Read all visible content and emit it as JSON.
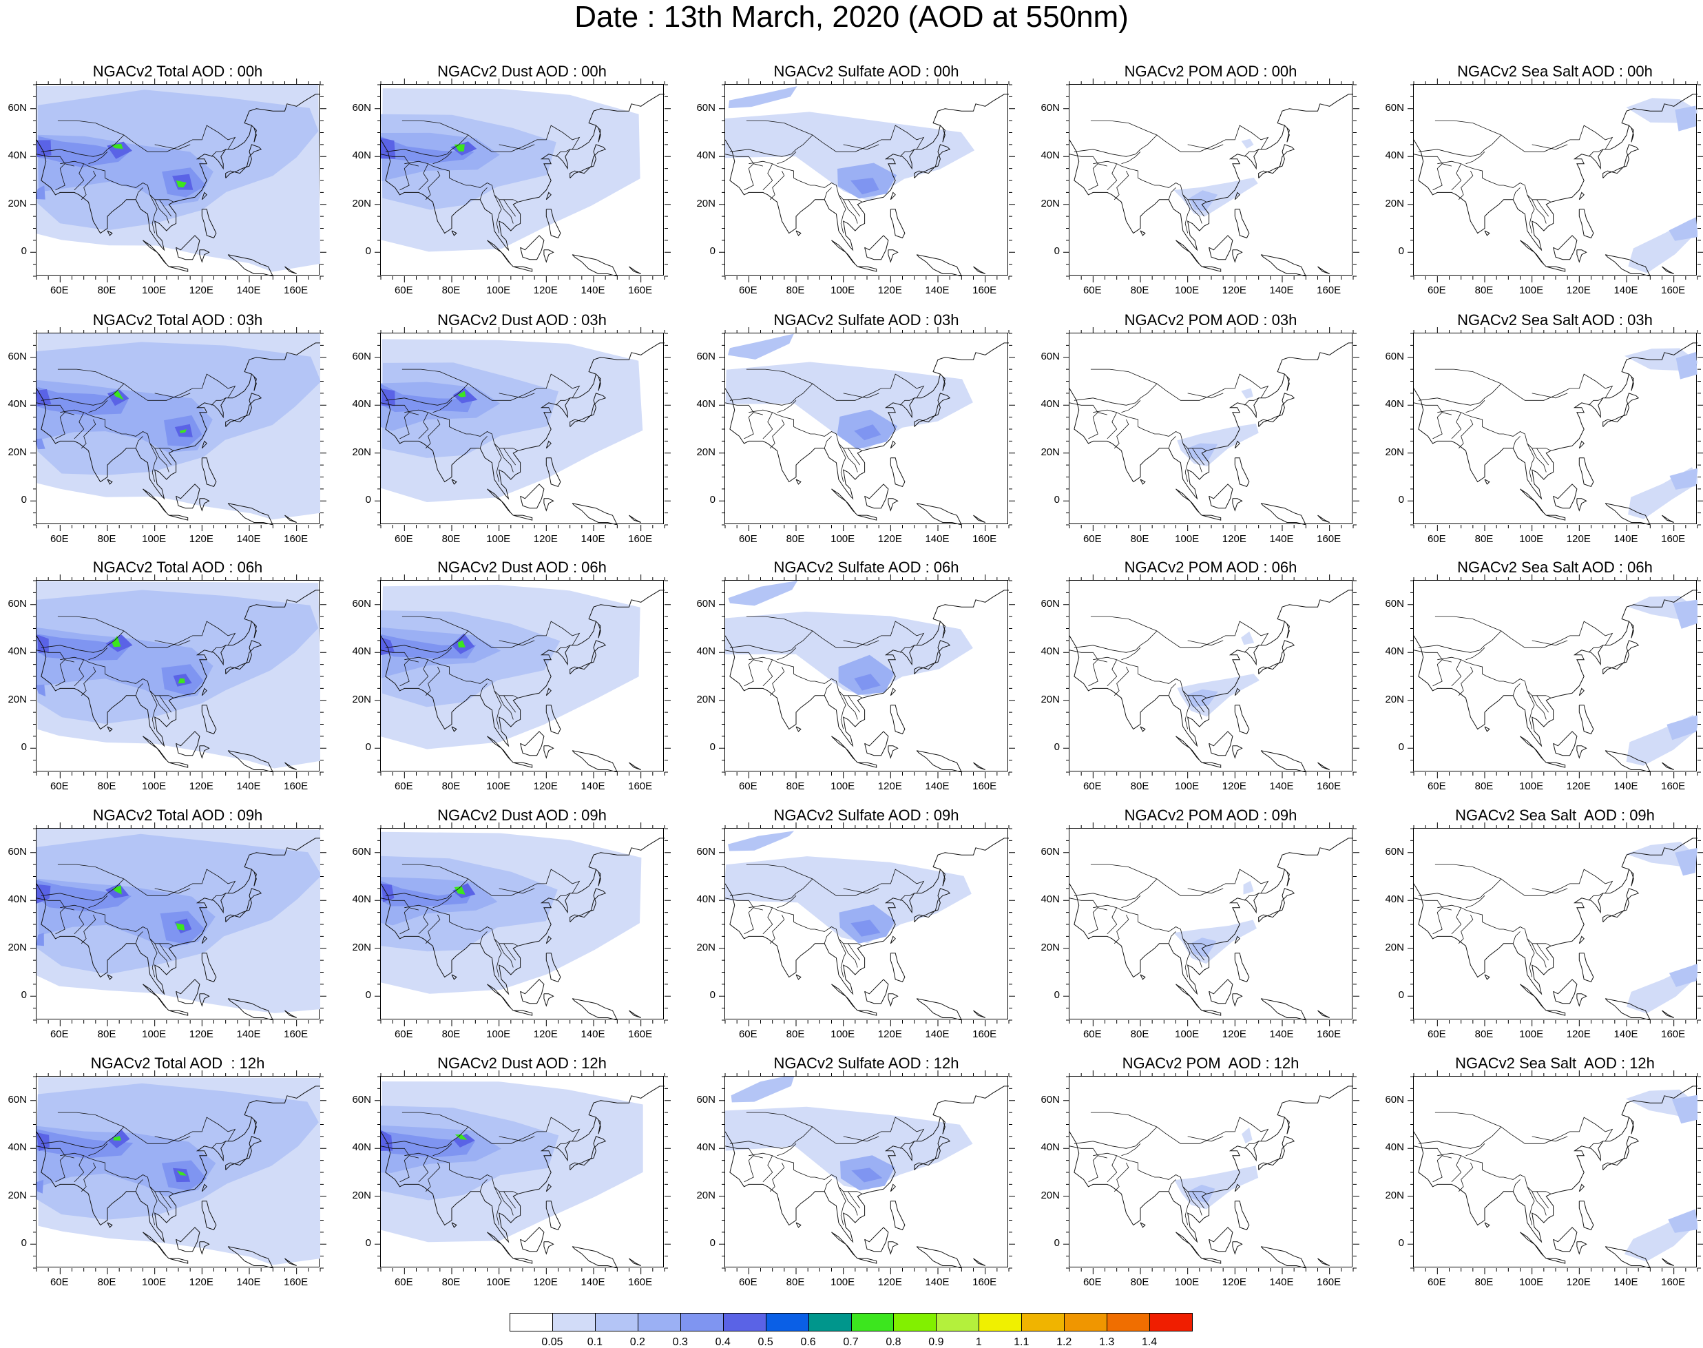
{
  "title": "Date : 13th March, 2020 (AOD at 550nm)",
  "lat_labels": [
    "60N",
    "40N",
    "20N",
    "0"
  ],
  "lon_labels": [
    "60E",
    "80E",
    "100E",
    "120E",
    "140E",
    "160E"
  ],
  "panel_titles": [
    [
      "NGACv2 Total AOD : 00h",
      "NGACv2 Dust AOD : 00h",
      "NGACv2 Sulfate AOD : 00h",
      "NGACv2 POM AOD : 00h",
      "NGACv2 Sea Salt AOD : 00h"
    ],
    [
      "NGACv2 Total AOD : 03h",
      "NGACv2 Dust AOD : 03h",
      "NGACv2 Sulfate AOD : 03h",
      "NGACv2 POM AOD : 03h",
      "NGACv2 Sea Salt AOD : 03h"
    ],
    [
      "NGACv2 Total AOD : 06h",
      "NGACv2 Dust AOD : 06h",
      "NGACv2 Sulfate AOD : 06h",
      "NGACv2 POM AOD : 06h",
      "NGACv2 Sea Salt AOD : 06h"
    ],
    [
      "NGACv2 Total AOD : 09h",
      "NGACv2 Dust AOD : 09h",
      "NGACv2 Sulfate AOD : 09h",
      "NGACv2 POM AOD : 09h",
      "NGACv2 Sea Salt  AOD : 09h"
    ],
    [
      "NGACv2 Total AOD  : 12h",
      "NGACv2 Dust AOD : 12h",
      "NGACv2 Sulfate AOD : 12h",
      "NGACv2 POM  AOD : 12h",
      "NGACv2 Sea Salt  AOD : 12h"
    ]
  ],
  "colorbar": {
    "labels": [
      "0.05",
      "0.1",
      "0.2",
      "0.3",
      "0.4",
      "0.5",
      "0.6",
      "0.7",
      "0.8",
      "0.9",
      "1",
      "1.1",
      "1.2",
      "1.3",
      "1.4"
    ],
    "colors": [
      "#ffffff",
      "#d2dcf8",
      "#b4c5f6",
      "#9bb0f4",
      "#7f95f1",
      "#5a63e6",
      "#0a5fe6",
      "#00968c",
      "#3ce61e",
      "#82f000",
      "#b4f03c",
      "#f0f000",
      "#f0b400",
      "#f09600",
      "#f06e00",
      "#f01e00"
    ]
  },
  "shading_colors": {
    "light": "#d2dcf8",
    "medium": "#b4c5f6",
    "strong": "#9bb0f4",
    "darker": "#7f95f1",
    "darkest": "#5a63e6",
    "peak": "#3ce61e"
  }
}
